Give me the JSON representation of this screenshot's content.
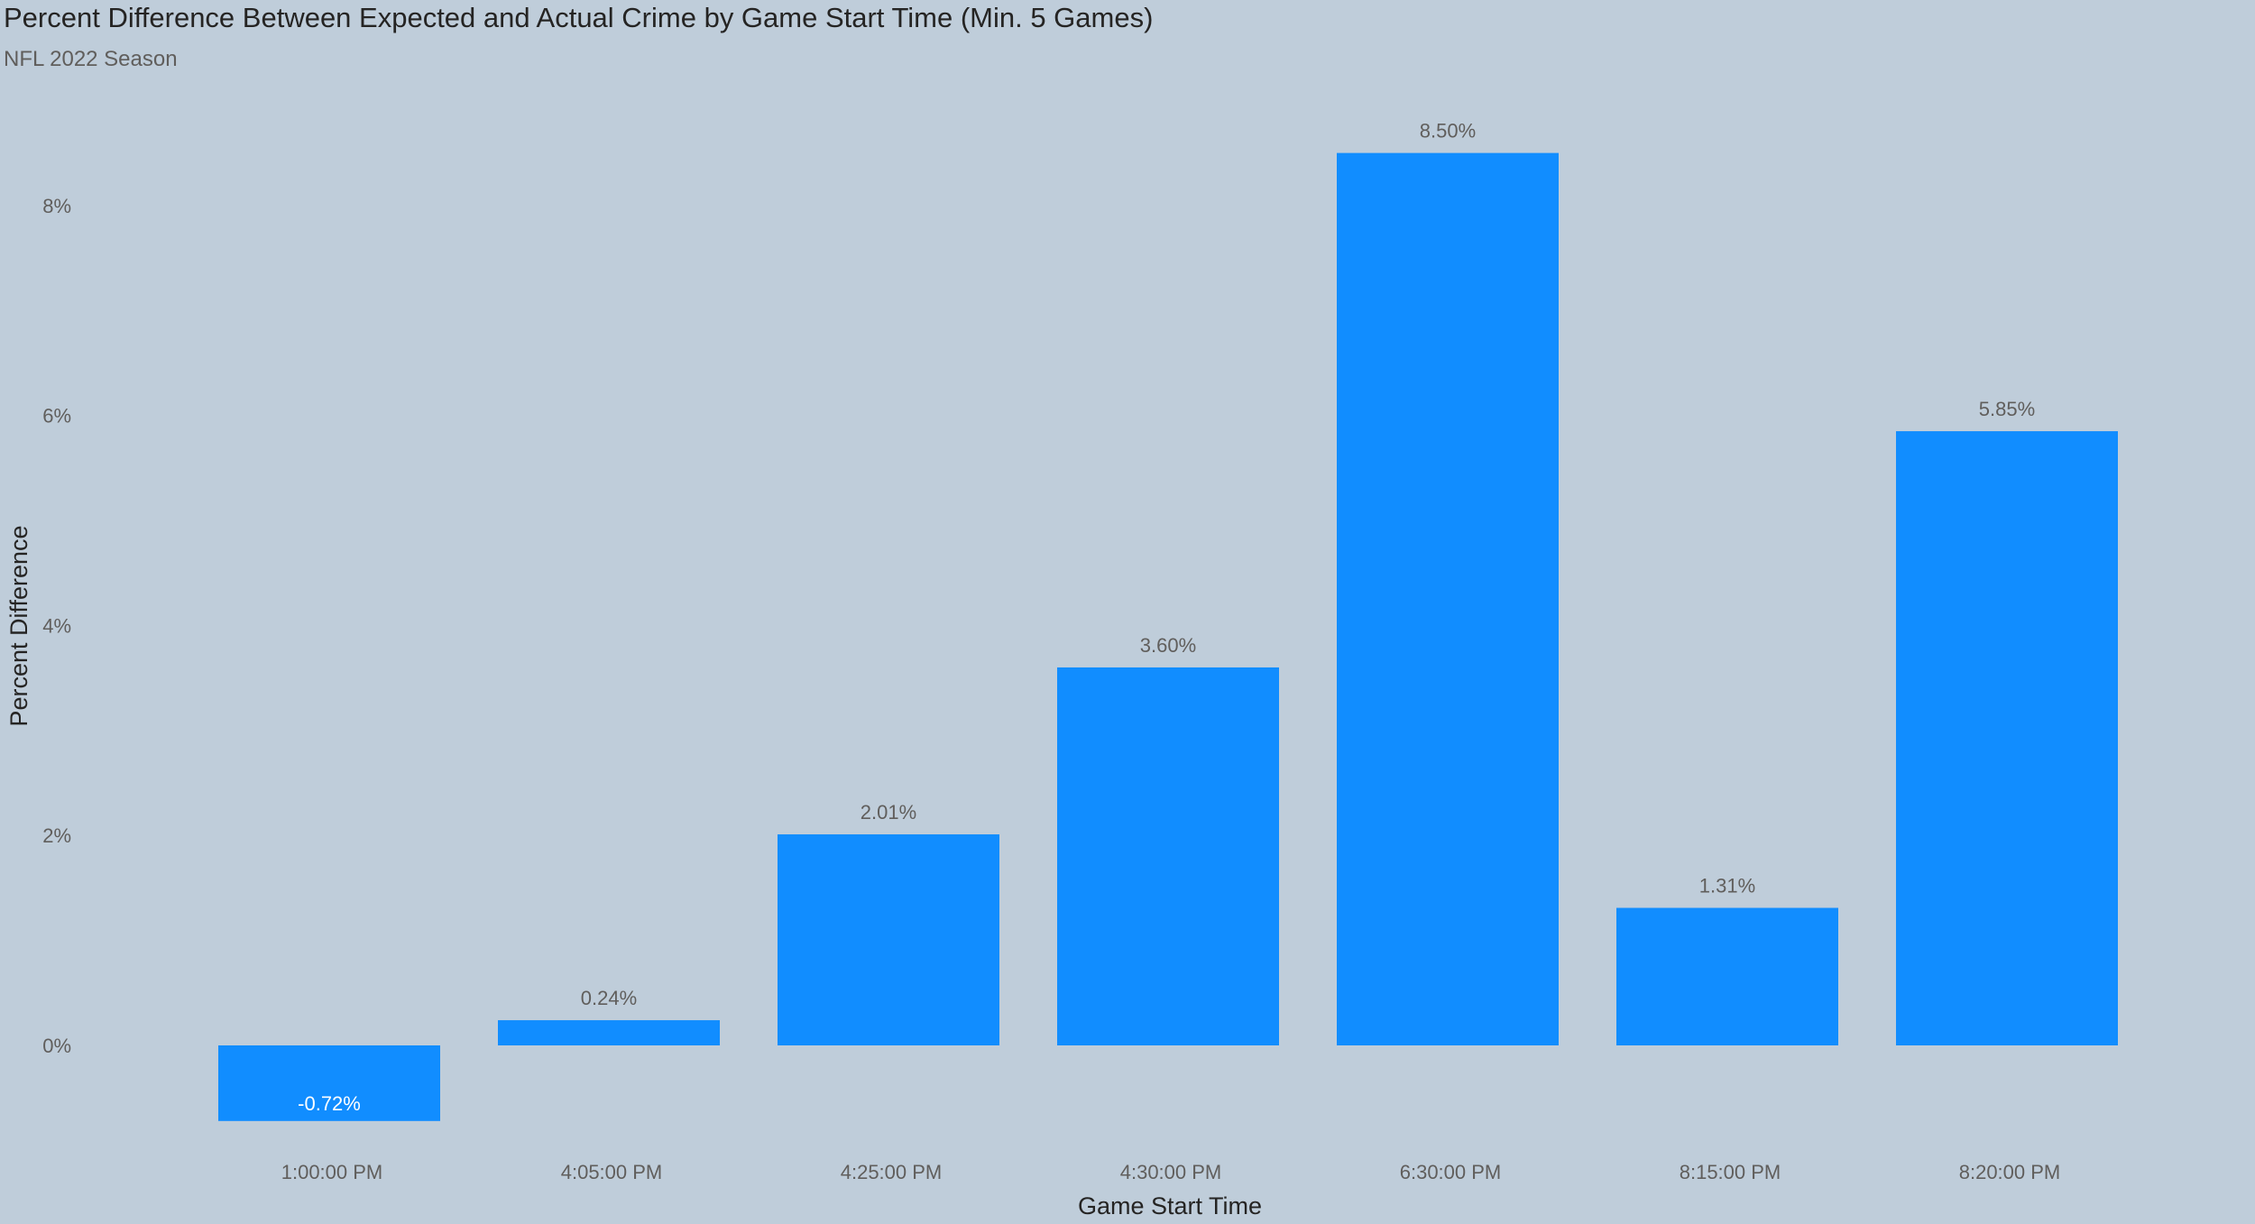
{
  "chart_data": {
    "type": "bar",
    "title": "Percent Difference Between Expected and Actual Crime by Game Start Time (Min. 5 Games)",
    "subtitle": "NFL 2022 Season",
    "xlabel": "Game Start Time",
    "ylabel": "Percent Difference",
    "categories": [
      "1:00:00 PM",
      "4:05:00 PM",
      "4:25:00 PM",
      "4:30:00 PM",
      "6:30:00 PM",
      "8:15:00 PM",
      "8:20:00 PM"
    ],
    "values": [
      -0.72,
      0.24,
      2.01,
      3.6,
      8.5,
      1.31,
      5.85
    ],
    "data_labels": [
      "-0.72%",
      "0.24%",
      "2.01%",
      "3.60%",
      "8.50%",
      "1.31%",
      "5.85%"
    ],
    "yticks": [
      0,
      2,
      4,
      6,
      8
    ],
    "ytick_labels": [
      "0%",
      "2%",
      "4%",
      "6%",
      "8%"
    ],
    "ylim": [
      -1.0,
      9.0
    ],
    "grid": false,
    "bar_color": "#118dff",
    "label_color": "#605e5c",
    "inside_label_color": "#ffffff"
  }
}
